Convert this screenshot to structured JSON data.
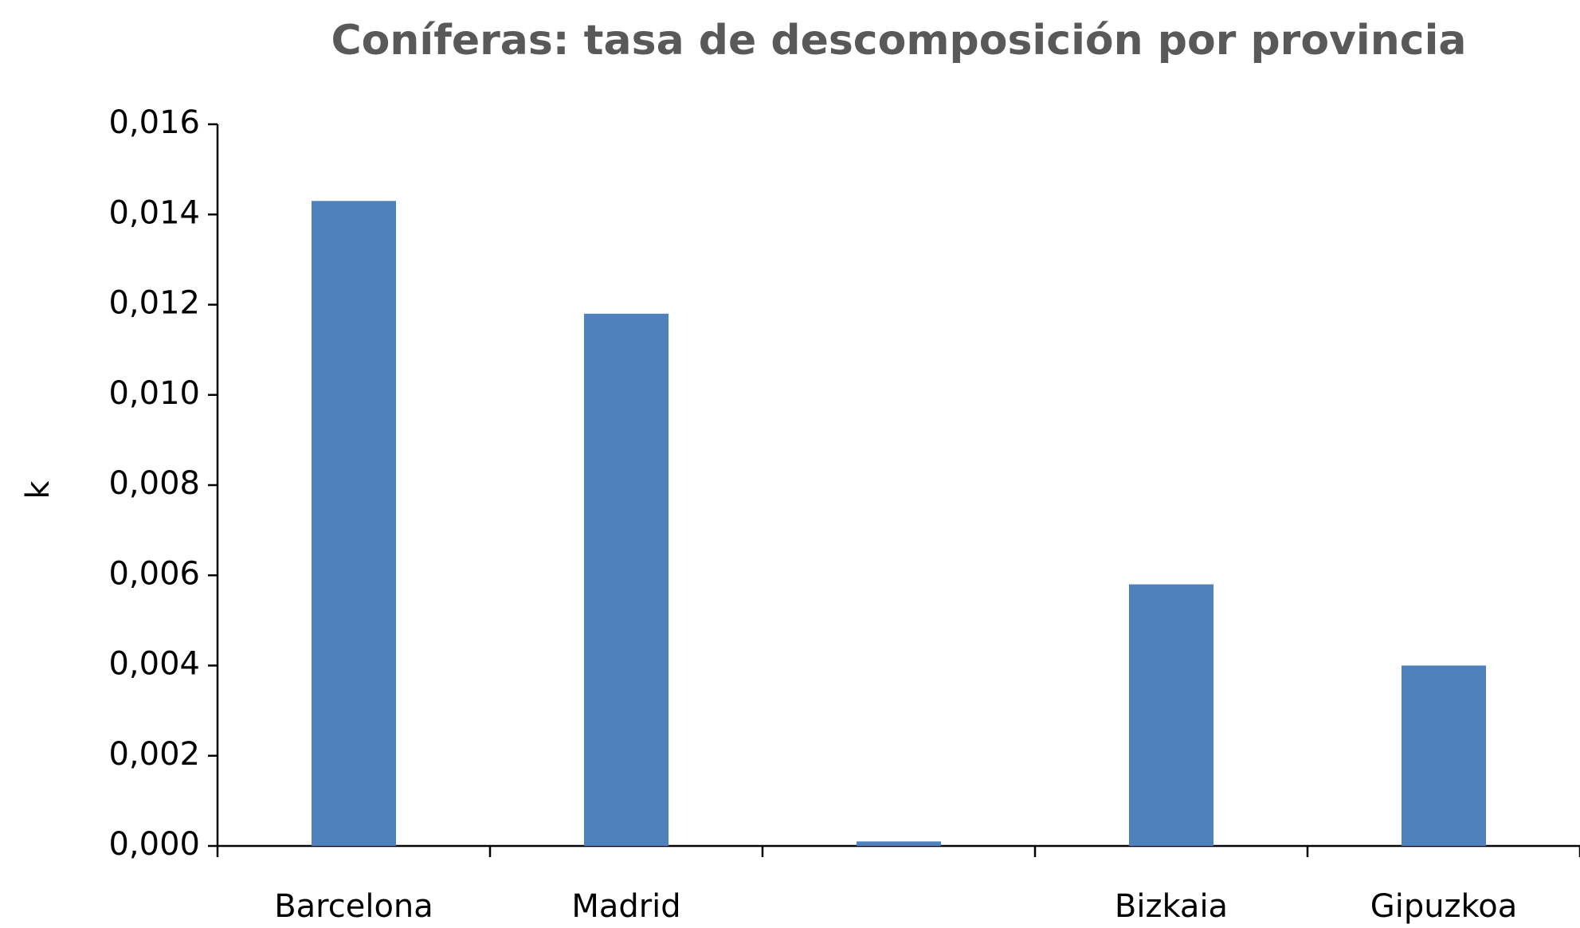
{
  "chart_data": {
    "type": "bar",
    "title": "Coníferas: tasa de descomposición por provincia",
    "ylabel": "k",
    "categories": [
      "Barcelona",
      "Madrid",
      null,
      "Bizkaia",
      "Gipuzkoa"
    ],
    "values": [
      0.0143,
      0.0118,
      0.0001,
      0.0058,
      0.004
    ],
    "color": "#4f81bd",
    "ylim": [
      0,
      0.016
    ],
    "yticks": [
      {
        "value": 0,
        "label": "0,000"
      },
      {
        "value": 0.002,
        "label": "0,002"
      },
      {
        "value": 0.004,
        "label": "0,004"
      },
      {
        "value": 0.006,
        "label": "0,006"
      },
      {
        "value": 0.008,
        "label": "0,008"
      },
      {
        "value": 0.01,
        "label": "0,010"
      },
      {
        "value": 0.012,
        "label": "0,012"
      },
      {
        "value": 0.014,
        "label": "0,014"
      },
      {
        "value": 0.016,
        "label": "0,016"
      }
    ],
    "grid": false
  }
}
